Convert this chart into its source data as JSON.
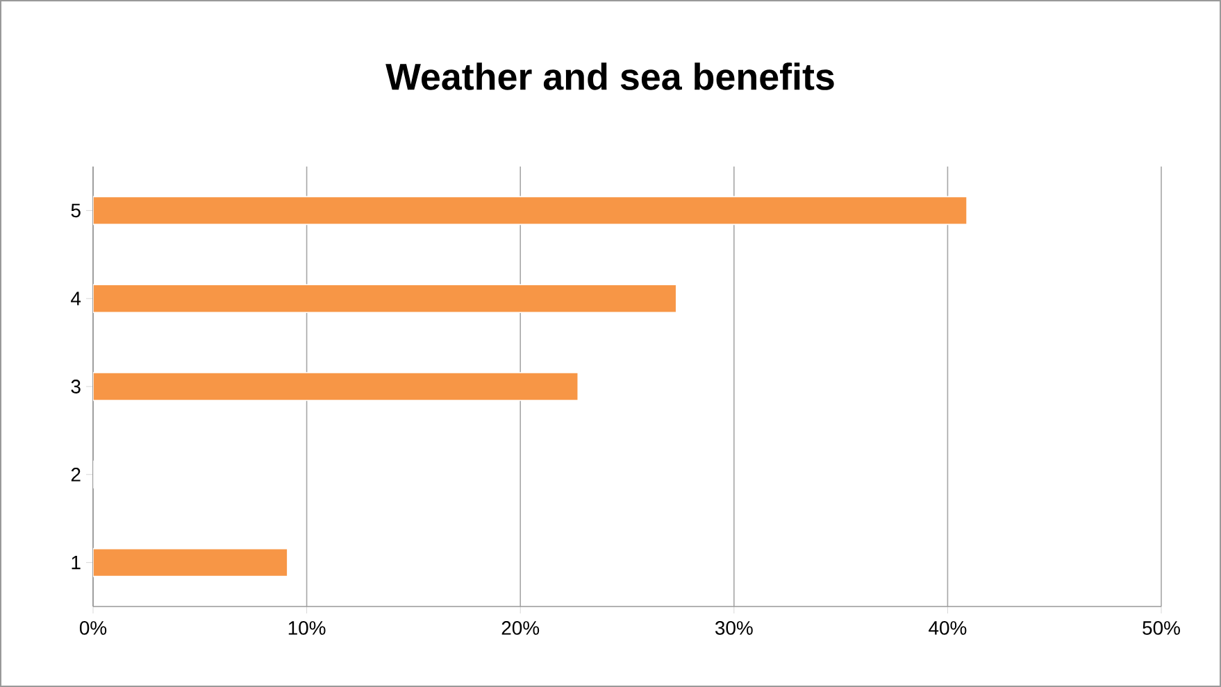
{
  "chart_data": {
    "type": "bar",
    "orientation": "horizontal",
    "title": "Weather and sea benefits",
    "categories": [
      "5",
      "4",
      "3",
      "2",
      "1"
    ],
    "values": [
      40.9,
      27.3,
      22.7,
      0,
      9.1
    ],
    "color": "#f79646",
    "xlim": [
      0,
      50
    ],
    "xticks": [
      {
        "value": 0,
        "label": "0%"
      },
      {
        "value": 10,
        "label": "10%"
      },
      {
        "value": 20,
        "label": "20%"
      },
      {
        "value": 30,
        "label": "30%"
      },
      {
        "value": 40,
        "label": "40%"
      },
      {
        "value": 50,
        "label": "50%"
      }
    ],
    "grid": "x"
  }
}
